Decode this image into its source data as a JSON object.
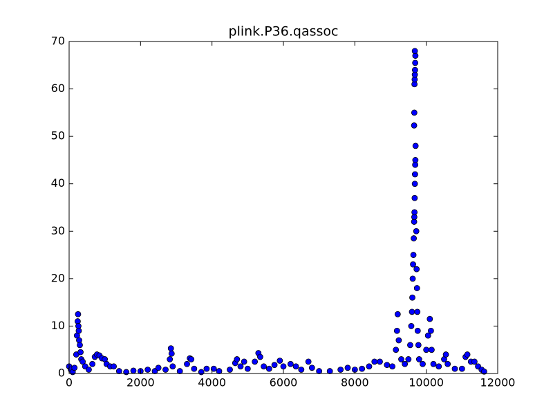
{
  "chart_data": {
    "type": "scatter",
    "title": "plink.P36.qassoc",
    "x": [
      0,
      50,
      100,
      150,
      200,
      220,
      240,
      250,
      260,
      270,
      280,
      300,
      320,
      340,
      380,
      450,
      550,
      650,
      720,
      780,
      850,
      920,
      1000,
      1050,
      1150,
      1250,
      1400,
      1600,
      1800,
      2000,
      2200,
      2400,
      2500,
      2700,
      2820,
      2850,
      2870,
      2900,
      3100,
      3300,
      3380,
      3420,
      3500,
      3700,
      3850,
      4050,
      4200,
      4500,
      4650,
      4700,
      4800,
      4900,
      5000,
      5200,
      5300,
      5350,
      5450,
      5600,
      5750,
      5900,
      6000,
      6200,
      6350,
      6500,
      6700,
      6800,
      7000,
      7300,
      7600,
      7800,
      8000,
      8200,
      8400,
      8550,
      8700,
      8900,
      9050,
      9150,
      9180,
      9200,
      9230,
      9300,
      9400,
      9500,
      9550,
      9580,
      9600,
      9610,
      9620,
      9630,
      9640,
      9650,
      9660,
      9665,
      9670,
      9675,
      9680,
      9685,
      9690,
      9695,
      9700,
      9660,
      9665,
      9670,
      9675,
      9680,
      9685,
      9690,
      9695,
      9680,
      9720,
      9730,
      9740,
      9750,
      9760,
      9780,
      9800,
      9900,
      10000,
      10050,
      10100,
      10130,
      10150,
      10200,
      10350,
      10500,
      10550,
      10600,
      10800,
      11000,
      11100,
      11150,
      11250,
      11350,
      11450,
      11550,
      11620
    ],
    "y": [
      1.5,
      0.8,
      0.3,
      1.2,
      4,
      8,
      11,
      12.5,
      10,
      9,
      7,
      6,
      4.5,
      3,
      2.5,
      1.5,
      0.8,
      2,
      3.5,
      4,
      3.8,
      3.2,
      3,
      2,
      1.5,
      1.5,
      0.5,
      0.3,
      0.6,
      0.5,
      0.8,
      0.5,
      1.2,
      0.8,
      3,
      5.3,
      4.2,
      1.5,
      0.5,
      2,
      3.2,
      3,
      1,
      0.3,
      1,
      1,
      0.5,
      0.8,
      2.2,
      3,
      1.5,
      2.5,
      1,
      2.5,
      4.3,
      3.5,
      1.5,
      1,
      1.8,
      2.7,
      1.5,
      2,
      1.5,
      0.8,
      2.5,
      1.2,
      0.5,
      0.5,
      0.8,
      1.2,
      0.8,
      1,
      1.5,
      2.5,
      2.5,
      1.8,
      1.5,
      5,
      9,
      12.5,
      7,
      3,
      2,
      3,
      6,
      10,
      13,
      16,
      20,
      23,
      25,
      28.5,
      32,
      33,
      34,
      37,
      40,
      42,
      44,
      45,
      48,
      52.3,
      55,
      61,
      62,
      63,
      64,
      65.5,
      67,
      68,
      30,
      22,
      18,
      13,
      9,
      6,
      3,
      2,
      5,
      8,
      11.5,
      9,
      5,
      2,
      1.5,
      3,
      4,
      2,
      1,
      1,
      3.5,
      4,
      2.5,
      2.5,
      1.5,
      0.8,
      0.4
    ],
    "color": "#0000ff",
    "xlim": [
      0,
      12000
    ],
    "xticks": [
      0,
      2000,
      4000,
      6000,
      8000,
      10000,
      12000
    ],
    "ylim": [
      0,
      70
    ],
    "yticks": [
      0,
      10,
      20,
      30,
      40,
      50,
      60,
      70
    ],
    "grid": false
  }
}
